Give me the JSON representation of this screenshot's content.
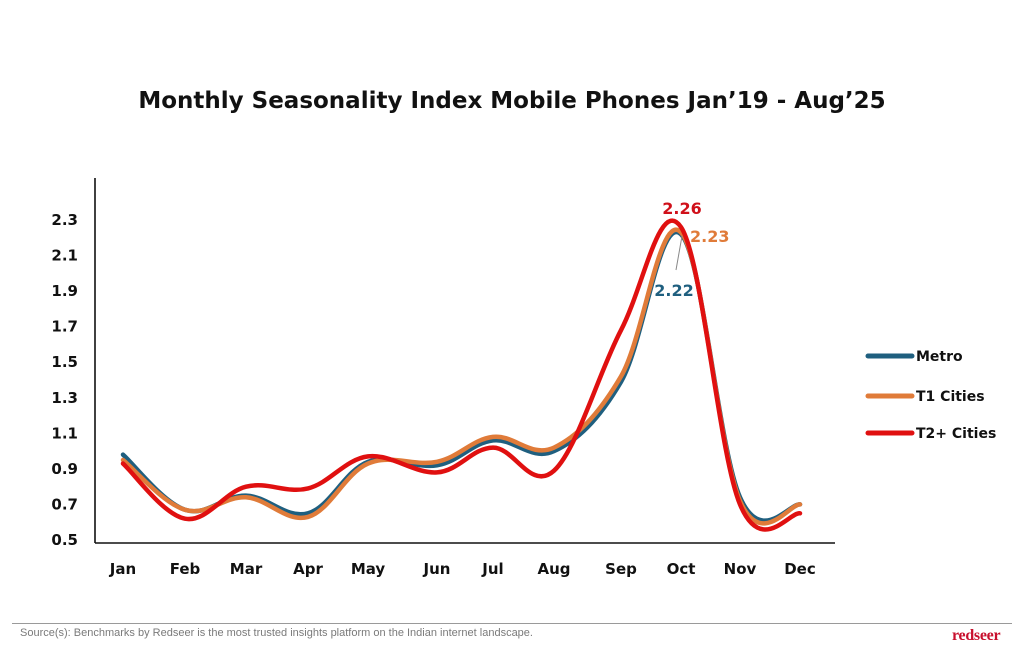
{
  "chart_data": {
    "type": "line",
    "title": "Monthly Seasonality Index Mobile Phones Jan’19 - Aug’25",
    "xlabel": "",
    "ylabel": "",
    "categories": [
      "Jan",
      "Feb",
      "Mar",
      "Apr",
      "May",
      "Jun",
      "Jul",
      "Aug",
      "Sep",
      "Oct",
      "Nov",
      "Dec"
    ],
    "yticks": [
      "0.5",
      "0.7",
      "0.9",
      "1.1",
      "1.3",
      "1.5",
      "1.7",
      "1.9",
      "2.1",
      "2.3"
    ],
    "ylim": [
      0.5,
      2.4
    ],
    "grid": false,
    "legend_position": "right",
    "series": [
      {
        "name": "Metro",
        "color": "#1f5f7f",
        "values": [
          0.98,
          0.67,
          0.75,
          0.65,
          0.94,
          0.92,
          1.06,
          1.0,
          1.39,
          2.22,
          0.74,
          0.7
        ]
      },
      {
        "name": "T1 Cities",
        "color": "#e07b39",
        "values": [
          0.95,
          0.67,
          0.74,
          0.63,
          0.93,
          0.94,
          1.08,
          1.02,
          1.42,
          2.23,
          0.72,
          0.7
        ]
      },
      {
        "name": "T2+ Cities",
        "color": "#e01010",
        "values": [
          0.93,
          0.62,
          0.8,
          0.79,
          0.97,
          0.88,
          1.02,
          0.89,
          1.68,
          2.26,
          0.7,
          0.65
        ]
      }
    ],
    "annotations": [
      {
        "text": "2.26",
        "series": "T2+ Cities",
        "category": "Oct",
        "color": "#d0101a"
      },
      {
        "text": "2.23",
        "series": "T1 Cities",
        "category": "Oct",
        "color": "#e07b39"
      },
      {
        "text": "2.22",
        "series": "Metro",
        "category": "Oct",
        "color": "#1f5f7f"
      }
    ]
  },
  "footer": {
    "source": "Source(s): Benchmarks by Redseer is the most trusted insights platform on the Indian internet landscape.",
    "logo": "redseer"
  }
}
